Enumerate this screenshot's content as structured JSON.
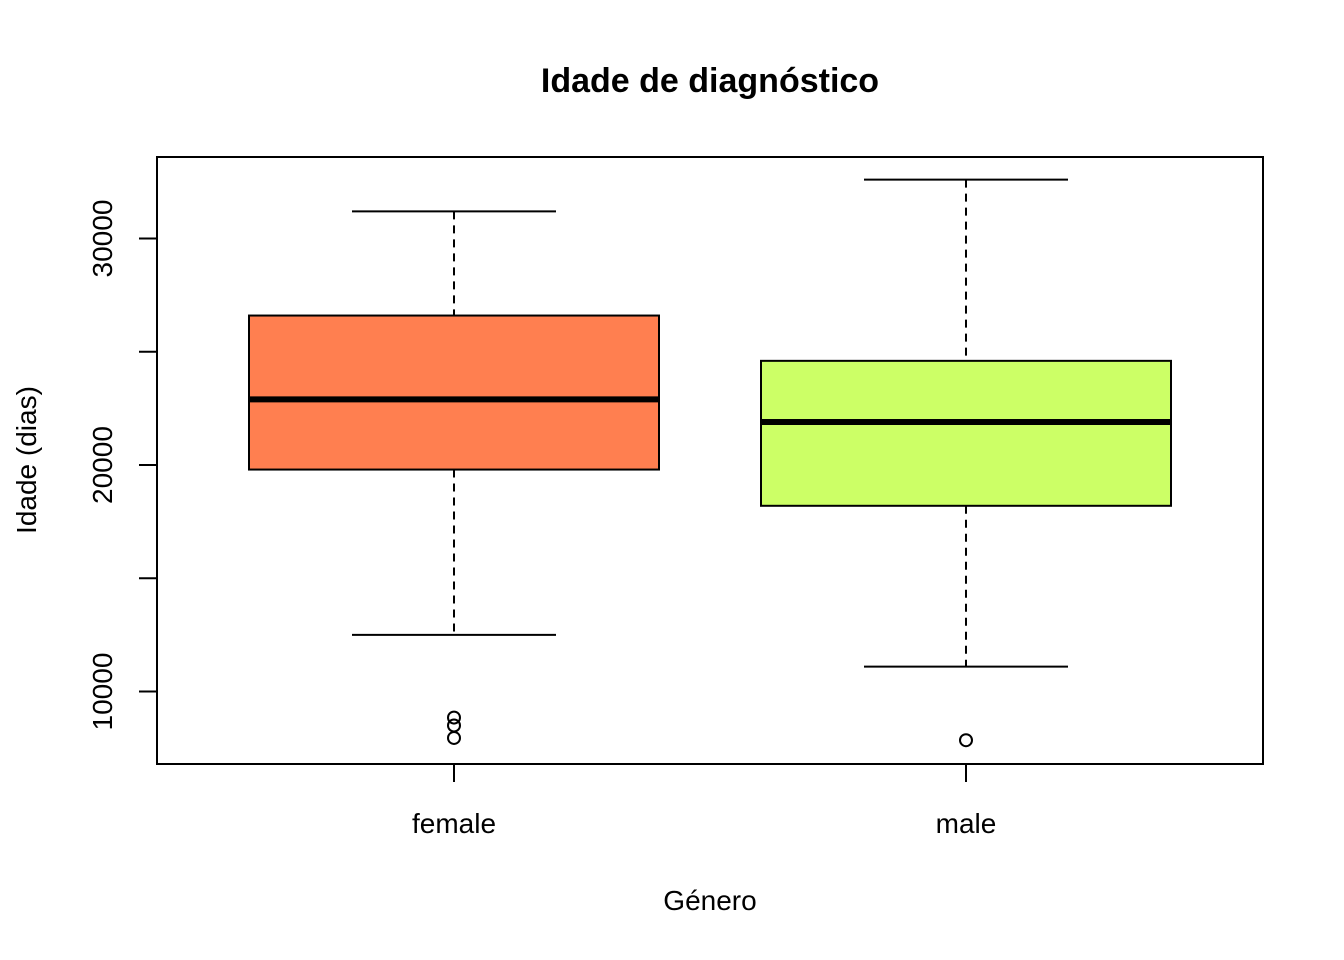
{
  "chart_data": {
    "type": "boxplot",
    "title": "Idade de diagnóstico",
    "xlabel": "Género",
    "ylabel": "Idade (dias)",
    "categories": [
      "female",
      "male"
    ],
    "ylim": [
      6800,
      33600
    ],
    "y_ticks": [
      10000,
      15000,
      20000,
      25000,
      30000
    ],
    "y_tick_labels": [
      "10000",
      "",
      "20000",
      "",
      "30000"
    ],
    "grid": false,
    "legend": "none",
    "boxes": [
      {
        "category": "female",
        "color": "#FF7F50",
        "whisker_low": 12500,
        "q1": 19800,
        "median": 22900,
        "q3": 26600,
        "whisker_high": 31200,
        "outliers": [
          7950,
          8500,
          8850
        ]
      },
      {
        "category": "male",
        "color": "#CCFF66",
        "whisker_low": 11100,
        "q1": 18200,
        "median": 21900,
        "q3": 24600,
        "whisker_high": 32600,
        "outliers": [
          7850
        ]
      }
    ]
  }
}
